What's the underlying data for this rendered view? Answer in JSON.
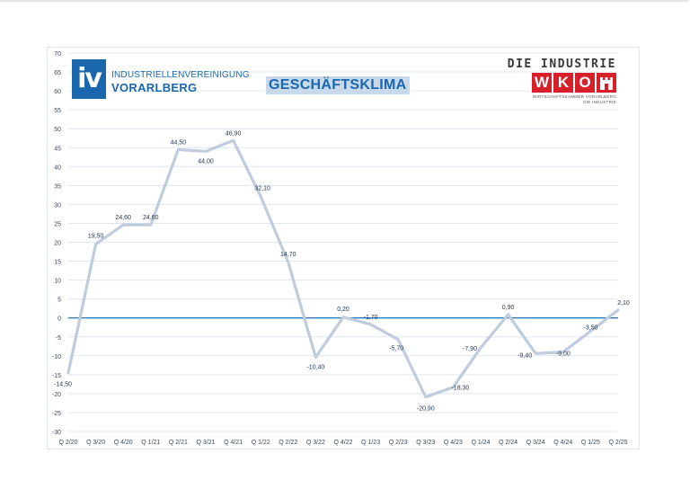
{
  "chart_data": {
    "type": "line",
    "title": "GESCHÄFTSKLIMA",
    "categories": [
      "Q 2/20",
      "Q 3/20",
      "Q 4/20",
      "Q 1/21",
      "Q 2/21",
      "Q 3/21",
      "Q 4/21",
      "Q 1/22",
      "Q 2/22",
      "Q 3/22",
      "Q 4/22",
      "Q 1/23",
      "Q 2/23",
      "Q 3/23",
      "Q 4/23",
      "Q 1/24",
      "Q 2/24",
      "Q 3/24",
      "Q 4/24",
      "Q 1/25",
      "Q 2/25"
    ],
    "series": [
      {
        "values": [
          -14.5,
          19.5,
          24.6,
          24.6,
          44.5,
          44.0,
          46.9,
          32.1,
          14.7,
          -10.4,
          0.2,
          -1.7,
          -5.7,
          -20.9,
          -18.3,
          -7.9,
          0.9,
          -9.4,
          -9.0,
          -3.5,
          2.1
        ],
        "labels": [
          "-14,50",
          "19,50",
          "24,60",
          "24,60",
          "44,50",
          "44,00",
          "46,90",
          "32,10",
          "14,70",
          "-10,40",
          "0,20",
          "-1,70",
          "-5,70",
          "-20,90",
          "-18,30",
          "-7,90",
          "0,90",
          "-9,40",
          "-9,00",
          "-3,50",
          "2,10"
        ]
      }
    ],
    "y_ticks": [
      "70",
      "65",
      "60",
      "55",
      "50",
      "45",
      "40",
      "35",
      "30",
      "25",
      "20",
      "15",
      "10",
      "5",
      "0",
      "-5",
      "-10",
      "-15",
      "-20",
      "-25",
      "-30"
    ],
    "ylim": [
      -30,
      70
    ],
    "grid": true,
    "colors": {
      "line": "#bfccdd",
      "zero_line": "#2f7bbf",
      "grid": "#dde7f0",
      "tick_text": "#3a4a5a",
      "label_text": "#1f3450"
    }
  },
  "logos": {
    "iv": {
      "badge": "iv",
      "line1": "INDUSTRIELLENVEREINIGUNG",
      "line2": "VORARLBERG",
      "color": "#1b67ad"
    },
    "wko": {
      "heading": "DIE INDUSTRIE",
      "letters": [
        "W",
        "K",
        "O"
      ],
      "sub1": "WIRTSCHAFTSKAMMER VORARLBERG",
      "sub2": "DIE INDUSTRIE",
      "color": "#d7202a"
    }
  }
}
